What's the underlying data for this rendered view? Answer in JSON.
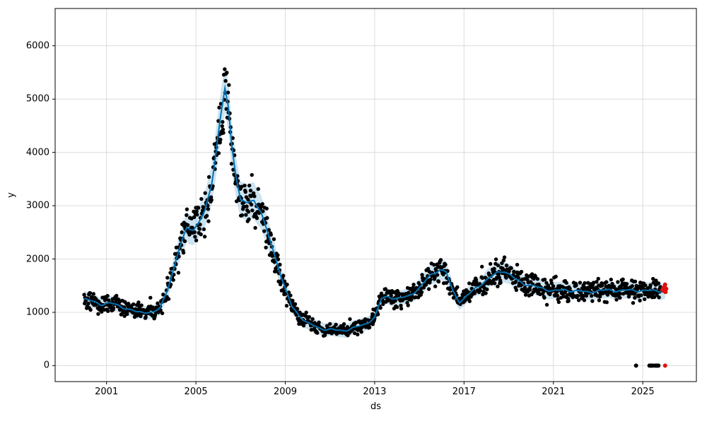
{
  "chart_data": {
    "type": "line",
    "title": "",
    "xlabel": "ds",
    "ylabel": "y",
    "grid": true,
    "legend": false,
    "xlim": [
      1998.7,
      2027.4
    ],
    "ylim": [
      -300,
      6700
    ],
    "x_ticks": [
      2001,
      2005,
      2009,
      2013,
      2017,
      2021,
      2025
    ],
    "y_ticks": [
      0,
      1000,
      2000,
      3000,
      4000,
      5000,
      6000
    ],
    "colors": {
      "observed": "#000000",
      "forecast_line": "#0072B2",
      "uncertainty_band": "rgba(0,114,178,0.2)",
      "anomaly": "#e01010",
      "grid": "#dcdcdc",
      "frame": "#000000",
      "background": "#ffffff"
    },
    "series": [
      {
        "name": "observed-history",
        "style": "scatter",
        "color": "#000000"
      },
      {
        "name": "forecast-yhat",
        "style": "line",
        "color": "#0072B2"
      },
      {
        "name": "uncertainty-interval",
        "style": "band",
        "color": "rgba(0,114,178,0.2)"
      },
      {
        "name": "recent-anomalies",
        "style": "scatter",
        "color": "#e01010"
      }
    ],
    "trend": {
      "x": [
        2000.0,
        2000.4,
        2000.8,
        2001.2,
        2001.6,
        2002.0,
        2002.4,
        2002.8,
        2003.1,
        2003.4,
        2003.7,
        2004.0,
        2004.3,
        2004.6,
        2004.9,
        2005.1,
        2005.4,
        2005.7,
        2005.9,
        2006.1,
        2006.3,
        2006.45,
        2006.6,
        2006.8,
        2007.0,
        2007.3,
        2007.6,
        2007.9,
        2008.2,
        2008.5,
        2008.8,
        2009.0,
        2009.3,
        2009.6,
        2010.0,
        2010.5,
        2011.0,
        2011.5,
        2012.0,
        2012.5,
        2013.0,
        2013.3,
        2013.6,
        2014.0,
        2014.5,
        2015.0,
        2015.5,
        2015.9,
        2016.2,
        2016.5,
        2016.8,
        2017.0,
        2017.5,
        2018.0,
        2018.5,
        2018.8,
        2019.2,
        2019.6,
        2020.0,
        2020.5,
        2021.0,
        2021.5,
        2022.0,
        2022.5,
        2023.0,
        2023.5,
        2024.0,
        2024.5,
        2025.0,
        2025.5,
        2026.0
      ],
      "y": [
        1250,
        1200,
        1150,
        1170,
        1120,
        1050,
        1000,
        1010,
        990,
        1080,
        1400,
        1800,
        2250,
        2600,
        2550,
        2650,
        2900,
        3400,
        4000,
        4650,
        5200,
        4850,
        4150,
        3550,
        3100,
        3050,
        3100,
        2900,
        2500,
        2100,
        1700,
        1450,
        1100,
        950,
        800,
        700,
        680,
        650,
        700,
        760,
        900,
        1250,
        1300,
        1250,
        1300,
        1450,
        1700,
        1800,
        1750,
        1400,
        1200,
        1250,
        1450,
        1600,
        1750,
        1780,
        1650,
        1550,
        1500,
        1450,
        1400,
        1420,
        1400,
        1380,
        1400,
        1420,
        1400,
        1420,
        1400,
        1410,
        1400
      ]
    },
    "seasonal_wiggle_amplitude": 25,
    "band": {
      "rel_width": 0.11,
      "min_width": 130,
      "max_width": 450
    },
    "observed_sampling": {
      "start": 2000.0,
      "end": 2025.8,
      "step": 0.019,
      "rel_sigma": 0.14,
      "min_sigma": 70,
      "outlier_prob": 0.03,
      "outlier_scale": 2.0,
      "seed": 42,
      "marker_radius": 2.7
    },
    "black_zero_points": [
      [
        2024.7,
        0
      ],
      [
        2025.3,
        0
      ],
      [
        2025.35,
        0
      ],
      [
        2025.4,
        0
      ],
      [
        2025.45,
        0
      ],
      [
        2025.55,
        0
      ],
      [
        2025.6,
        0
      ],
      [
        2025.65,
        0
      ],
      [
        2025.7,
        0
      ]
    ],
    "red_points": [
      [
        2025.88,
        1420
      ],
      [
        2025.92,
        1460
      ],
      [
        2025.95,
        1400
      ],
      [
        2025.98,
        1480
      ],
      [
        2026.0,
        1520
      ],
      [
        2026.02,
        1380
      ],
      [
        2026.05,
        1440
      ],
      [
        2026.0,
        0
      ]
    ]
  }
}
